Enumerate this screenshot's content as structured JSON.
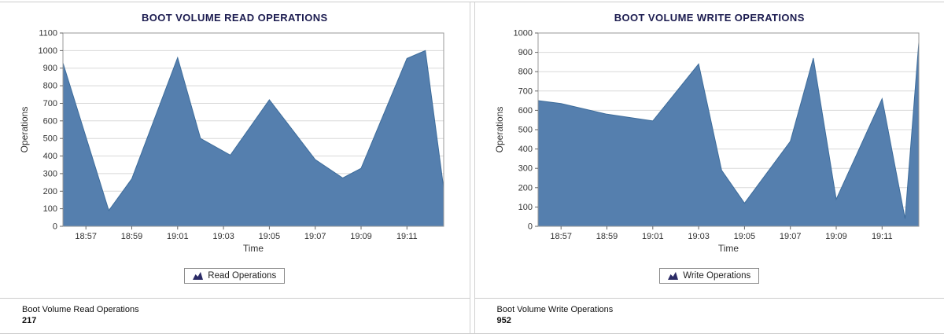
{
  "colors": {
    "area_fill": "#557fae",
    "area_stroke": "#3d6c9b",
    "grid": "#d8d8d8",
    "plot_border": "#999999",
    "tick": "#666666",
    "legend_icon": "#2b2b66",
    "title": "#1c1c50"
  },
  "panels": [
    {
      "title": "BOOT VOLUME READ OPERATIONS",
      "legend_label": "Read Operations",
      "footer_label": "Boot Volume Read Operations",
      "footer_value": "217"
    },
    {
      "title": "BOOT VOLUME WRITE OPERATIONS",
      "legend_label": "Write Operations",
      "footer_label": "Boot Volume Write Operations",
      "footer_value": "952"
    }
  ],
  "chart_data": [
    {
      "type": "area",
      "title": "BOOT VOLUME READ OPERATIONS",
      "series_name": "Read Operations",
      "xlabel": "Time",
      "ylabel": "Operations",
      "x_unit": "minutes since 18:56",
      "xlim": [
        0,
        16.6
      ],
      "ylim": [
        0,
        1100
      ],
      "yticks": [
        0,
        100,
        200,
        300,
        400,
        500,
        600,
        700,
        800,
        900,
        1000,
        1100
      ],
      "x_tick_positions": [
        1,
        3,
        5,
        7,
        9,
        11,
        13,
        15
      ],
      "x_tick_labels": [
        "18:57",
        "18:59",
        "19:01",
        "19:03",
        "19:05",
        "19:07",
        "19:09",
        "19:11"
      ],
      "x": [
        0,
        2,
        3,
        5,
        6,
        7.3,
        9,
        11,
        12.2,
        13,
        15,
        15.8,
        16.6
      ],
      "values": [
        930,
        90,
        270,
        960,
        500,
        405,
        720,
        380,
        275,
        330,
        955,
        1000,
        217
      ],
      "grid": "horizontal",
      "legend_position": "bottom"
    },
    {
      "type": "area",
      "title": "BOOT VOLUME WRITE OPERATIONS",
      "series_name": "Write Operations",
      "xlabel": "Time",
      "ylabel": "Operations",
      "x_unit": "minutes since 18:56",
      "xlim": [
        0,
        16.6
      ],
      "ylim": [
        0,
        1000
      ],
      "yticks": [
        0,
        100,
        200,
        300,
        400,
        500,
        600,
        700,
        800,
        900,
        1000
      ],
      "x_tick_positions": [
        1,
        3,
        5,
        7,
        9,
        11,
        13,
        15
      ],
      "x_tick_labels": [
        "18:57",
        "18:59",
        "19:01",
        "19:03",
        "19:05",
        "19:07",
        "19:09",
        "19:11"
      ],
      "x": [
        0,
        1,
        3,
        5,
        7,
        8,
        9,
        11,
        12,
        13,
        15,
        16,
        16.6
      ],
      "values": [
        650,
        635,
        580,
        545,
        840,
        290,
        120,
        440,
        870,
        140,
        660,
        40,
        952
      ],
      "grid": "horizontal",
      "legend_position": "bottom"
    }
  ]
}
